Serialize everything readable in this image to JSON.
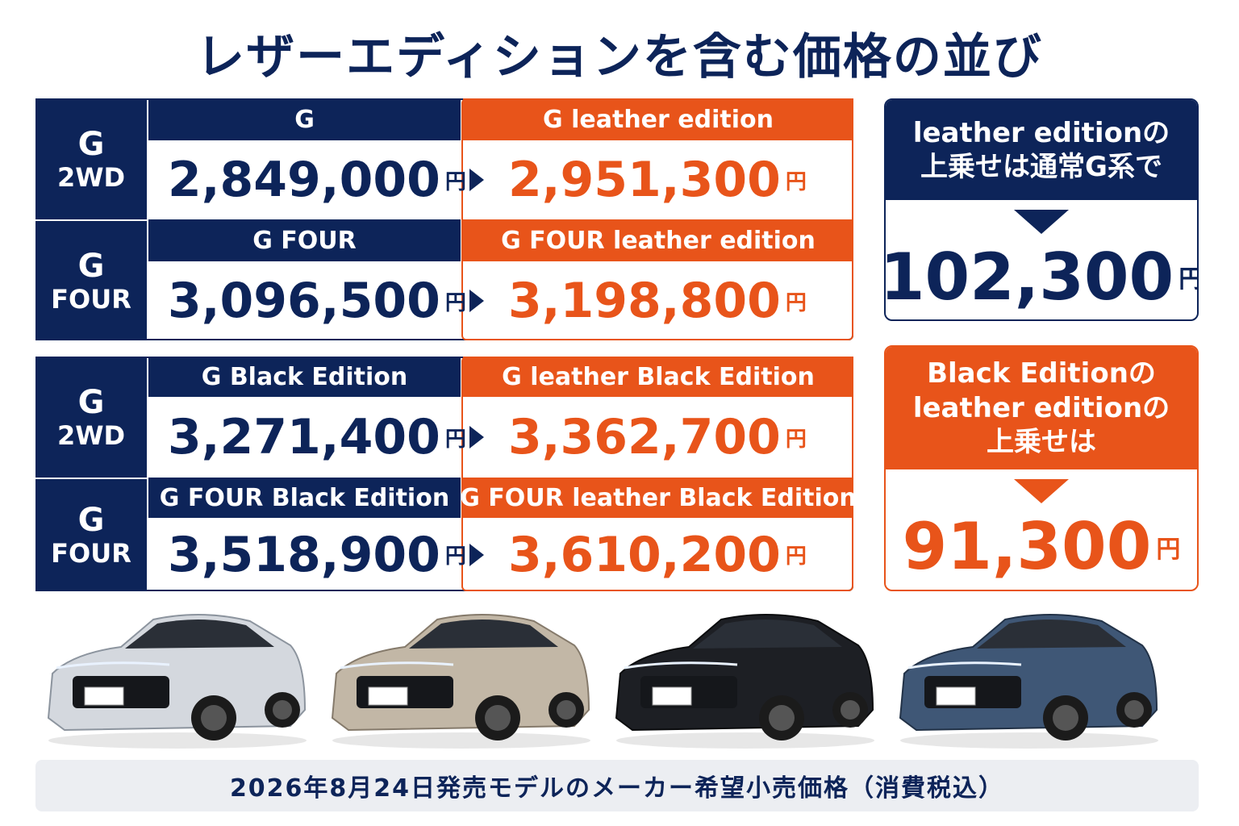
{
  "title": "レザーエディションを含む価格の並び",
  "groups": [
    {
      "rows": [
        {
          "label": [
            "G",
            "2WD"
          ],
          "base": {
            "name": "G",
            "price": "2,849,000",
            "unit": "円"
          },
          "leather": {
            "name": "G leather edition",
            "price": "2,951,300",
            "unit": "円"
          }
        },
        {
          "label": [
            "G",
            "FOUR"
          ],
          "base": {
            "name": "G FOUR",
            "price": "3,096,500",
            "unit": "円"
          },
          "leather": {
            "name": "G FOUR leather edition",
            "price": "3,198,800",
            "unit": "円"
          }
        }
      ]
    },
    {
      "rows": [
        {
          "label": [
            "G",
            "2WD"
          ],
          "base": {
            "name": "G Black Edition",
            "price": "3,271,400",
            "unit": "円"
          },
          "leather": {
            "name": "G leather Black Edition",
            "price": "3,362,700",
            "unit": "円"
          }
        },
        {
          "label": [
            "G",
            "FOUR"
          ],
          "base": {
            "name": "G FOUR Black Edition",
            "price": "3,518,900",
            "unit": "円"
          },
          "leather": {
            "name": "G FOUR leather Black Edition",
            "price": "3,610,200",
            "unit": "円"
          }
        }
      ]
    }
  ],
  "side_boxes": [
    {
      "lines": [
        "leather editionの",
        "上乗せは通常G系で"
      ],
      "amount": "102,300",
      "unit": "円"
    },
    {
      "lines": [
        "Black Editionの",
        "leather editionの",
        "上乗せは"
      ],
      "amount": "91,300",
      "unit": "円"
    }
  ],
  "footer": "2026年8月24日発売モデルのメーカー希望小売価格（消費税込）"
}
